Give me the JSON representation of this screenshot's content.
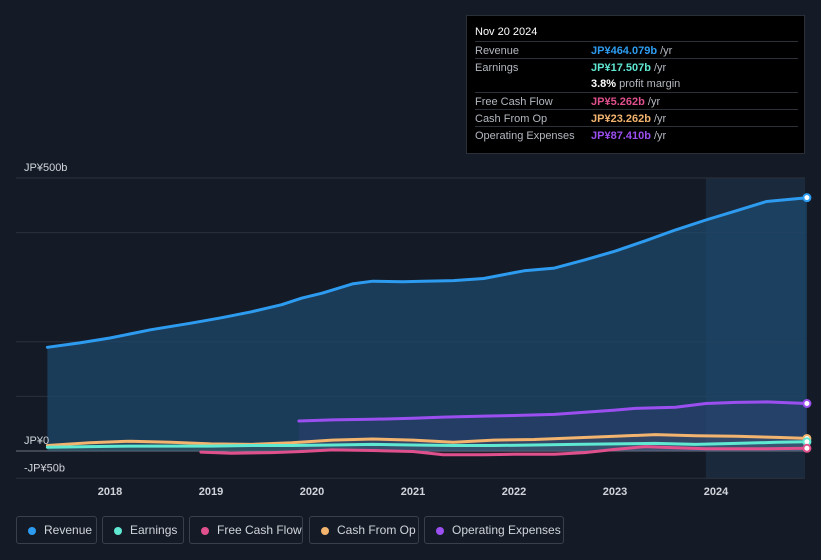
{
  "tooltip": {
    "date": "Nov 20 2024",
    "rows": [
      {
        "label": "Revenue",
        "value": "JP¥464.079b",
        "unit": "/yr",
        "color": "#2d9cf0"
      },
      {
        "label": "Earnings",
        "value": "JP¥17.507b",
        "unit": "/yr",
        "color": "#5fe8d2"
      },
      {
        "label": "",
        "value": "3.8%",
        "unit": "profit margin",
        "color": "#ffffff"
      },
      {
        "label": "Free Cash Flow",
        "value": "JP¥5.262b",
        "unit": "/yr",
        "color": "#e0508d"
      },
      {
        "label": "Cash From Op",
        "value": "JP¥23.262b",
        "unit": "/yr",
        "color": "#f2b46e"
      },
      {
        "label": "Operating Expenses",
        "value": "JP¥87.410b",
        "unit": "/yr",
        "color": "#9b4ff0"
      }
    ]
  },
  "legend": [
    {
      "label": "Revenue",
      "color": "#2d9cf0"
    },
    {
      "label": "Earnings",
      "color": "#5fe8d2"
    },
    {
      "label": "Free Cash Flow",
      "color": "#e0508d"
    },
    {
      "label": "Cash From Op",
      "color": "#f2b46e"
    },
    {
      "label": "Operating Expenses",
      "color": "#9b4ff0"
    }
  ],
  "chart_data": {
    "type": "area",
    "title": "",
    "xlabel": "",
    "ylabel": "",
    "x_ticks": [
      "2018",
      "2019",
      "2020",
      "2021",
      "2022",
      "2023",
      "2024"
    ],
    "y_ticks": [
      {
        "value": 500,
        "label": "JP¥500b"
      },
      {
        "value": 0,
        "label": "JP¥0"
      },
      {
        "value": -50,
        "label": "-JP¥50b"
      }
    ],
    "ylim": [
      -50,
      500
    ],
    "xlim": [
      2017.38,
      2024.9
    ],
    "grid": true,
    "legend_position": "bottom",
    "highlight_start": 2023.9,
    "series": [
      {
        "name": "Revenue",
        "color": "#2d9cf0",
        "fill": true,
        "x": [
          2017.38,
          2017.7,
          2018.0,
          2018.4,
          2018.8,
          2019.1,
          2019.4,
          2019.7,
          2019.9,
          2020.1,
          2020.4,
          2020.6,
          2020.9,
          2021.1,
          2021.4,
          2021.7,
          2021.9,
          2022.1,
          2022.4,
          2022.7,
          2023.0,
          2023.3,
          2023.6,
          2023.9,
          2024.2,
          2024.5,
          2024.9
        ],
        "values": [
          190,
          198,
          207,
          222,
          234,
          244,
          255,
          268,
          280,
          289,
          306,
          311,
          310,
          311,
          312,
          316,
          323,
          330,
          335,
          350,
          366,
          385,
          405,
          423,
          440,
          457,
          464
        ]
      },
      {
        "name": "Operating Expenses",
        "color": "#9b4ff0",
        "fill": false,
        "x": [
          2019.87,
          2020.2,
          2020.6,
          2021.0,
          2021.3,
          2021.7,
          2022.0,
          2022.4,
          2022.7,
          2023.0,
          2023.2,
          2023.6,
          2023.9,
          2024.2,
          2024.5,
          2024.9
        ],
        "values": [
          55,
          57,
          58,
          60,
          62,
          64,
          65,
          67,
          71,
          75,
          78,
          80,
          87,
          89,
          90,
          87
        ]
      },
      {
        "name": "Cash From Op",
        "color": "#f2b46e",
        "fill": false,
        "x": [
          2017.38,
          2017.8,
          2018.2,
          2018.6,
          2019.0,
          2019.4,
          2019.8,
          2020.2,
          2020.6,
          2021.0,
          2021.4,
          2021.8,
          2022.2,
          2022.6,
          2023.0,
          2023.4,
          2023.8,
          2024.2,
          2024.6,
          2024.9
        ],
        "values": [
          10,
          15,
          18,
          16,
          13,
          12,
          15,
          20,
          22,
          20,
          16,
          20,
          21,
          24,
          27,
          30,
          28,
          27,
          25,
          23
        ]
      },
      {
        "name": "Earnings",
        "color": "#5fe8d2",
        "fill": false,
        "x": [
          2017.38,
          2017.8,
          2018.2,
          2018.6,
          2019.0,
          2019.4,
          2019.8,
          2020.2,
          2020.6,
          2021.0,
          2021.4,
          2021.8,
          2022.2,
          2022.6,
          2023.0,
          2023.4,
          2023.8,
          2024.2,
          2024.6,
          2024.9
        ],
        "values": [
          7,
          8,
          9,
          9,
          9,
          10,
          10,
          11,
          12,
          11,
          10,
          10,
          11,
          12,
          13,
          14,
          12,
          14,
          16,
          17
        ]
      },
      {
        "name": "Free Cash Flow",
        "color": "#e0508d",
        "fill": false,
        "x": [
          2018.9,
          2019.2,
          2019.6,
          2019.9,
          2020.2,
          2020.6,
          2021.0,
          2021.3,
          2021.7,
          2022.0,
          2022.4,
          2022.7,
          2023.0,
          2023.3,
          2023.6,
          2023.9,
          2024.2,
          2024.5,
          2024.9
        ],
        "values": [
          -2,
          -4,
          -3,
          -1,
          2,
          1,
          -1,
          -7,
          -7,
          -6,
          -6,
          -3,
          3,
          8,
          6,
          4,
          4,
          4,
          5
        ]
      }
    ]
  }
}
